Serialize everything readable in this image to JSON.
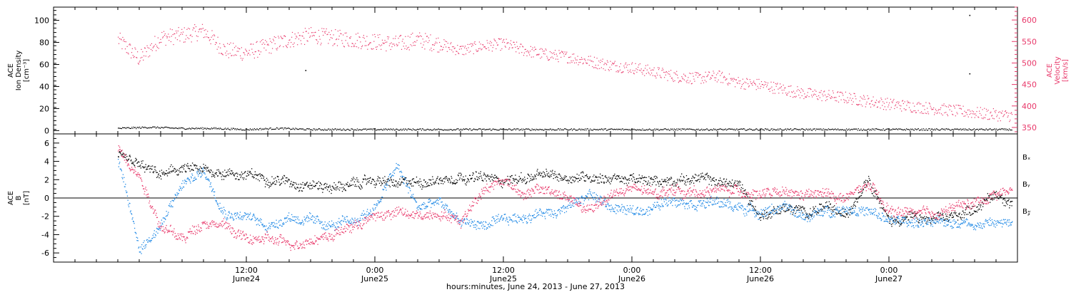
{
  "colors": {
    "black": "#000000",
    "velocity": "#e8386a",
    "by": "#1e88e5",
    "bz": "#e8386a"
  },
  "caption": "hours:minutes, June 24, 2013 - June 27, 2013",
  "chart_data": [
    {
      "type": "scatter",
      "panel": "top",
      "ylabel_lines": [
        "ACE",
        "Ion Density",
        "[cm⁻³]"
      ],
      "ylim": [
        -3,
        112
      ],
      "yticks": [
        0,
        20,
        40,
        60,
        80,
        100
      ],
      "y2label_lines": [
        "ACE",
        "Velocity",
        "[km/s]"
      ],
      "y2lim": [
        335,
        630
      ],
      "y2ticks": [
        350,
        400,
        450,
        500,
        550,
        600
      ],
      "series": [
        {
          "color_key": "black",
          "axis": "left",
          "x": [
            0,
            3,
            6,
            9,
            12,
            15,
            18,
            21,
            24,
            27,
            30,
            33,
            36,
            39,
            42,
            45,
            48,
            51,
            54,
            57,
            60,
            63,
            66,
            69,
            72,
            75,
            78,
            81,
            83.5
          ],
          "y": [
            2,
            3,
            2,
            2,
            1,
            2,
            1,
            1,
            1,
            1,
            1,
            1,
            1,
            1,
            1,
            1,
            1,
            1,
            1,
            1,
            1,
            1,
            1,
            1,
            1,
            1,
            1,
            1,
            1
          ],
          "outliers_x": [
            17.5,
            79.5,
            79.5
          ],
          "outliers_y": [
            55,
            105,
            52
          ]
        },
        {
          "color_key": "velocity",
          "axis": "right",
          "x": [
            0,
            2,
            4,
            6,
            8,
            10,
            12,
            14,
            16,
            18,
            20,
            22,
            24,
            26,
            28,
            30,
            32,
            34,
            36,
            38,
            40,
            42,
            44,
            46,
            48,
            50,
            52,
            54,
            56,
            58,
            60,
            62,
            64,
            66,
            68,
            70,
            72,
            74,
            76,
            78,
            80,
            82,
            83.5
          ],
          "y": [
            555,
            510,
            560,
            565,
            575,
            530,
            525,
            540,
            555,
            565,
            560,
            555,
            550,
            545,
            555,
            545,
            530,
            540,
            545,
            530,
            520,
            515,
            505,
            495,
            490,
            480,
            470,
            465,
            470,
            455,
            450,
            440,
            430,
            425,
            420,
            412,
            405,
            400,
            395,
            390,
            385,
            380,
            378
          ]
        }
      ]
    },
    {
      "type": "scatter",
      "panel": "bottom",
      "ylabel_lines": [
        "ACE",
        "B",
        "[nT]"
      ],
      "ylim": [
        -7,
        7
      ],
      "yticks": [
        -6,
        -4,
        -2,
        0,
        2,
        4,
        6
      ],
      "legend": [
        {
          "label": "Bₓ",
          "color_key": "black"
        },
        {
          "label": "Bᵧ",
          "color_key": "by"
        },
        {
          "label": "B𝓏",
          "color_key": "bz"
        }
      ],
      "series": [
        {
          "color_key": "black",
          "x": [
            0,
            2,
            4,
            6,
            8,
            10,
            12,
            14,
            16,
            18,
            20,
            22,
            24,
            26,
            28,
            30,
            32,
            34,
            36,
            38,
            40,
            42,
            44,
            46,
            48,
            50,
            52,
            54,
            56,
            58,
            60,
            62,
            64,
            66,
            68,
            70,
            72,
            74,
            76,
            78,
            80,
            82,
            83.5
          ],
          "y": [
            4.5,
            3.5,
            2.5,
            3.2,
            3.0,
            2.8,
            2.5,
            2.2,
            1.8,
            1.5,
            1.2,
            1.5,
            2.0,
            1.5,
            1.8,
            2.0,
            2.5,
            2.2,
            2.0,
            2.2,
            2.5,
            2.3,
            2.4,
            2.2,
            2.0,
            1.8,
            2.0,
            2.2,
            1.8,
            1.5,
            -2.0,
            -1.0,
            -1.5,
            -1.0,
            -2.0,
            2.5,
            -2.5,
            -2.0,
            -2.5,
            -2.0,
            -1.0,
            0.5,
            -0.5
          ]
        },
        {
          "color_key": "by",
          "x": [
            0,
            2,
            4,
            6,
            8,
            10,
            12,
            14,
            16,
            18,
            20,
            22,
            24,
            26,
            28,
            30,
            32,
            34,
            36,
            38,
            40,
            42,
            44,
            46,
            48,
            50,
            52,
            54,
            56,
            58,
            60,
            62,
            64,
            66,
            68,
            70,
            72,
            74,
            76,
            78,
            80,
            82,
            83.5
          ],
          "y": [
            4.0,
            -5.5,
            -3.0,
            1.5,
            3.0,
            -1.5,
            -2.0,
            -3.0,
            -2.0,
            -2.5,
            -3.0,
            -2.5,
            -1.0,
            3.5,
            -1.0,
            -0.5,
            -2.5,
            -3.0,
            -2.5,
            -2.0,
            -1.5,
            -1.0,
            0.5,
            -1.0,
            -1.5,
            -1.0,
            0.0,
            -0.5,
            -0.5,
            -1.0,
            -1.5,
            -1.0,
            -2.0,
            -1.5,
            -1.0,
            -1.5,
            -2.5,
            -2.5,
            -2.8,
            -2.5,
            -2.8,
            -2.7,
            -2.8
          ]
        },
        {
          "color_key": "bz",
          "x": [
            0,
            2,
            4,
            6,
            8,
            10,
            12,
            14,
            16,
            18,
            20,
            22,
            24,
            26,
            28,
            30,
            32,
            34,
            36,
            38,
            40,
            42,
            44,
            46,
            48,
            50,
            52,
            54,
            56,
            58,
            60,
            62,
            64,
            66,
            68,
            70,
            72,
            74,
            76,
            78,
            80,
            82,
            83.5
          ],
          "y": [
            5.5,
            2.5,
            -3.0,
            -4.5,
            -2.5,
            -3.0,
            -4.5,
            -4.5,
            -5.0,
            -4.5,
            -4.0,
            -3.0,
            -2.0,
            -1.5,
            -2.0,
            -1.5,
            -2.5,
            1.0,
            2.0,
            0.5,
            1.0,
            0.0,
            -1.5,
            0.5,
            1.0,
            0.5,
            1.0,
            0.5,
            1.0,
            0.8,
            0.5,
            0.5,
            0.3,
            0.5,
            0.0,
            1.5,
            -1.5,
            -1.5,
            -1.8,
            -1.0,
            -0.5,
            0.5,
            1.0
          ]
        }
      ],
      "zero_line": 0
    }
  ],
  "x_axis": {
    "range_hours": [
      -6,
      84
    ],
    "ticks": [
      {
        "hour": 12,
        "time": "12:00",
        "date": "June24"
      },
      {
        "hour": 24,
        "time": "0:00",
        "date": "June25"
      },
      {
        "hour": 36,
        "time": "12:00",
        "date": "June25"
      },
      {
        "hour": 48,
        "time": "0:00",
        "date": "June26"
      },
      {
        "hour": 60,
        "time": "12:00",
        "date": "June26"
      },
      {
        "hour": 72,
        "time": "0:00",
        "date": "June27"
      }
    ]
  }
}
